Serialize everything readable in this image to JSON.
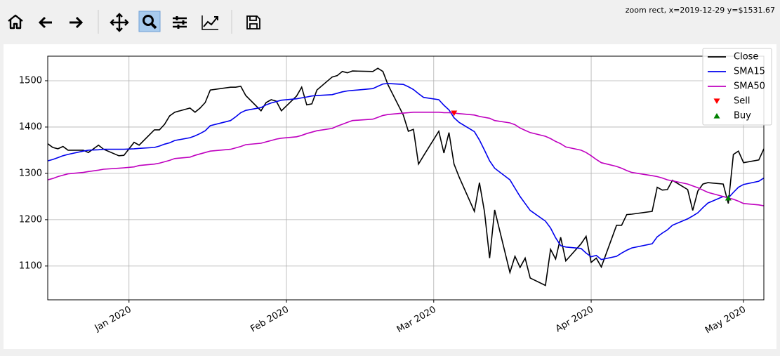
{
  "toolbar": {
    "status": "zoom rect, x=2019-12-29 y=$1531.67"
  },
  "chart_data": {
    "type": "line",
    "x": [
      "2019-12-16",
      "2019-12-17",
      "2019-12-18",
      "2019-12-19",
      "2019-12-20",
      "2019-12-23",
      "2019-12-24",
      "2019-12-26",
      "2019-12-27",
      "2019-12-30",
      "2019-12-31",
      "2020-01-02",
      "2020-01-03",
      "2020-01-06",
      "2020-01-07",
      "2020-01-08",
      "2020-01-09",
      "2020-01-10",
      "2020-01-13",
      "2020-01-14",
      "2020-01-15",
      "2020-01-16",
      "2020-01-17",
      "2020-01-21",
      "2020-01-22",
      "2020-01-23",
      "2020-01-24",
      "2020-01-27",
      "2020-01-28",
      "2020-01-29",
      "2020-01-30",
      "2020-01-31",
      "2020-02-03",
      "2020-02-04",
      "2020-02-05",
      "2020-02-06",
      "2020-02-07",
      "2020-02-10",
      "2020-02-11",
      "2020-02-12",
      "2020-02-13",
      "2020-02-14",
      "2020-02-18",
      "2020-02-19",
      "2020-02-20",
      "2020-02-21",
      "2020-02-24",
      "2020-02-25",
      "2020-02-26",
      "2020-02-27",
      "2020-02-28",
      "2020-03-02",
      "2020-03-03",
      "2020-03-04",
      "2020-03-05",
      "2020-03-06",
      "2020-03-09",
      "2020-03-10",
      "2020-03-11",
      "2020-03-12",
      "2020-03-13",
      "2020-03-16",
      "2020-03-17",
      "2020-03-18",
      "2020-03-19",
      "2020-03-20",
      "2020-03-23",
      "2020-03-24",
      "2020-03-25",
      "2020-03-26",
      "2020-03-27",
      "2020-03-30",
      "2020-03-31",
      "2020-04-01",
      "2020-04-02",
      "2020-04-03",
      "2020-04-06",
      "2020-04-07",
      "2020-04-08",
      "2020-04-09",
      "2020-04-13",
      "2020-04-14",
      "2020-04-15",
      "2020-04-16",
      "2020-04-17",
      "2020-04-20",
      "2020-04-21",
      "2020-04-22",
      "2020-04-23",
      "2020-04-24",
      "2020-04-27",
      "2020-04-28",
      "2020-04-29",
      "2020-04-30",
      "2020-05-01",
      "2020-05-04",
      "2020-05-05"
    ],
    "series": [
      {
        "name": "Close",
        "color": "#000000",
        "values": [
          1364,
          1356,
          1353,
          1358,
          1350,
          1350,
          1345,
          1361,
          1352,
          1338,
          1339,
          1367,
          1361,
          1394,
          1394,
          1406,
          1424,
          1432,
          1441,
          1432,
          1441,
          1453,
          1480,
          1486,
          1486,
          1488,
          1468,
          1435,
          1453,
          1459,
          1456,
          1435,
          1467,
          1486,
          1448,
          1450,
          1480,
          1508,
          1511,
          1520,
          1517,
          1521,
          1520,
          1527,
          1520,
          1491,
          1426,
          1391,
          1395,
          1320,
          1338,
          1391,
          1344,
          1388,
          1320,
          1292,
          1218,
          1280,
          1217,
          1117,
          1221,
          1086,
          1121,
          1097,
          1117,
          1074,
          1058,
          1136,
          1115,
          1162,
          1111,
          1148,
          1164,
          1108,
          1117,
          1098,
          1188,
          1188,
          1211,
          1212,
          1218,
          1270,
          1264,
          1265,
          1285,
          1265,
          1220,
          1262,
          1277,
          1280,
          1277,
          1235,
          1341,
          1348,
          1323,
          1329,
          1353
        ]
      },
      {
        "name": "SMA15",
        "color": "#0000ee",
        "values": [
          1327,
          1330,
          1334,
          1338,
          1341,
          1348,
          1350,
          1351,
          1352,
          1352,
          1352,
          1353,
          1354,
          1356,
          1359,
          1363,
          1366,
          1371,
          1377,
          1381,
          1386,
          1392,
          1403,
          1414,
          1422,
          1431,
          1436,
          1442,
          1448,
          1452,
          1455,
          1458,
          1461,
          1463,
          1465,
          1467,
          1468,
          1470,
          1473,
          1476,
          1478,
          1479,
          1483,
          1488,
          1493,
          1494,
          1492,
          1487,
          1481,
          1472,
          1464,
          1459,
          1447,
          1437,
          1420,
          1410,
          1390,
          1372,
          1350,
          1327,
          1311,
          1286,
          1268,
          1250,
          1235,
          1220,
          1197,
          1182,
          1161,
          1144,
          1141,
          1138,
          1128,
          1120,
          1123,
          1114,
          1121,
          1128,
          1134,
          1139,
          1148,
          1163,
          1171,
          1178,
          1188,
          1202,
          1208,
          1215,
          1226,
          1236,
          1250,
          1247,
          1259,
          1270,
          1276,
          1283,
          1290
        ]
      },
      {
        "name": "SMA50",
        "color": "#bf00bf",
        "values": [
          1286,
          1289,
          1293,
          1296,
          1299,
          1302,
          1304,
          1307,
          1309,
          1311,
          1312,
          1314,
          1317,
          1320,
          1322,
          1325,
          1328,
          1332,
          1335,
          1339,
          1342,
          1345,
          1348,
          1352,
          1355,
          1358,
          1362,
          1365,
          1368,
          1371,
          1374,
          1376,
          1379,
          1382,
          1386,
          1389,
          1392,
          1397,
          1402,
          1406,
          1410,
          1414,
          1417,
          1421,
          1425,
          1427,
          1430,
          1431,
          1432,
          1432,
          1432,
          1432,
          1431,
          1431,
          1430,
          1429,
          1426,
          1423,
          1421,
          1419,
          1414,
          1409,
          1405,
          1398,
          1393,
          1388,
          1380,
          1375,
          1369,
          1364,
          1357,
          1350,
          1345,
          1338,
          1330,
          1323,
          1315,
          1311,
          1306,
          1302,
          1295,
          1293,
          1290,
          1286,
          1284,
          1277,
          1273,
          1269,
          1264,
          1259,
          1250,
          1247,
          1244,
          1240,
          1235,
          1232,
          1230
        ]
      },
      {
        "name": "Sell",
        "color": "#ff0000",
        "marker": "triangle-down",
        "x": [
          "2020-03-05"
        ],
        "values": [
          1430
        ]
      },
      {
        "name": "Buy",
        "color": "#008000",
        "marker": "triangle-up",
        "x": [
          "2020-04-28"
        ],
        "values": [
          1247
        ]
      }
    ],
    "xlim": [
      "2019-12-16",
      "2020-05-05"
    ],
    "xticks": [
      {
        "value": "2020-01-01",
        "label": "Jan 2020"
      },
      {
        "value": "2020-02-01",
        "label": "Feb 2020"
      },
      {
        "value": "2020-03-01",
        "label": "Mar 2020"
      },
      {
        "value": "2020-04-01",
        "label": "Apr 2020"
      },
      {
        "value": "2020-05-01",
        "label": "May 2020"
      }
    ],
    "ylim": [
      1027,
      1553
    ],
    "yticks": [
      1100,
      1200,
      1300,
      1400,
      1500
    ],
    "grid": true,
    "legend": "upper-right"
  }
}
